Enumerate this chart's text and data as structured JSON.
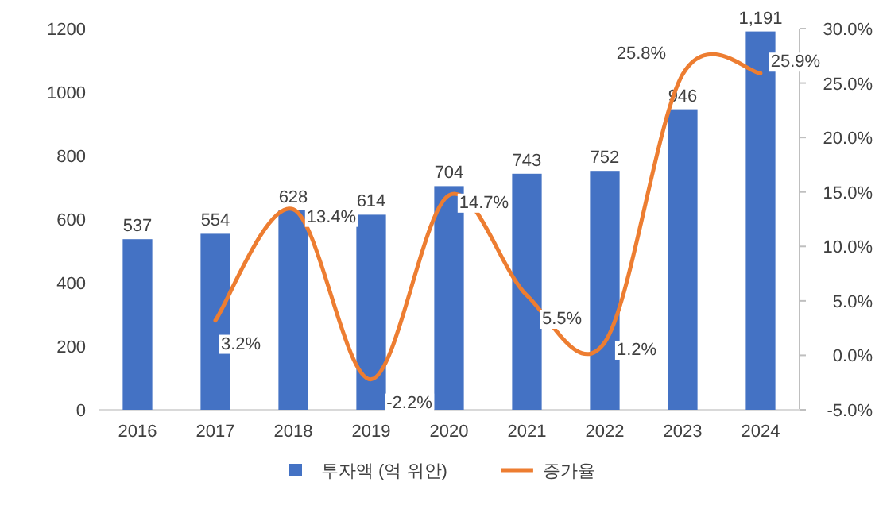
{
  "chart_data": {
    "type": "bar",
    "categories": [
      "2016",
      "2017",
      "2018",
      "2019",
      "2020",
      "2021",
      "2022",
      "2023",
      "2024"
    ],
    "series": [
      {
        "name": "투자액 (억 위안)",
        "color": "#4472c4",
        "values": [
          537,
          554,
          628,
          614,
          704,
          743,
          752,
          946,
          1191
        ],
        "value_labels": [
          "537",
          "554",
          "628",
          "614",
          "704",
          "743",
          "752",
          "946",
          "1,191"
        ]
      },
      {
        "name": "증가율",
        "type": "line",
        "axis": "y2",
        "color": "#ed7d31",
        "values": [
          null,
          3.2,
          13.4,
          -2.2,
          14.7,
          5.5,
          1.2,
          25.8,
          25.9
        ],
        "value_labels": [
          null,
          "3.2%",
          "13.4%",
          "-2.2%",
          "14.7%",
          "5.5%",
          "1.2%",
          "25.8%",
          "25.9%"
        ]
      }
    ],
    "ylim": [
      0,
      1200
    ],
    "yticks": [
      0,
      200,
      400,
      600,
      800,
      1000,
      1200
    ],
    "y2lim": [
      -5,
      30
    ],
    "y2ticks": [
      {
        "value": -5,
        "label": "-5.0%"
      },
      {
        "value": 0,
        "label": "0.0%"
      },
      {
        "value": 5,
        "label": "5.0%"
      },
      {
        "value": 10,
        "label": "10.0%"
      },
      {
        "value": 15,
        "label": "15.0%"
      },
      {
        "value": 20,
        "label": "20.0%"
      },
      {
        "value": 25,
        "label": "25.0%"
      },
      {
        "value": 30,
        "label": "30.0%"
      }
    ],
    "grid": false,
    "legend": "bottom",
    "marker": "none",
    "line_style": "solid"
  }
}
